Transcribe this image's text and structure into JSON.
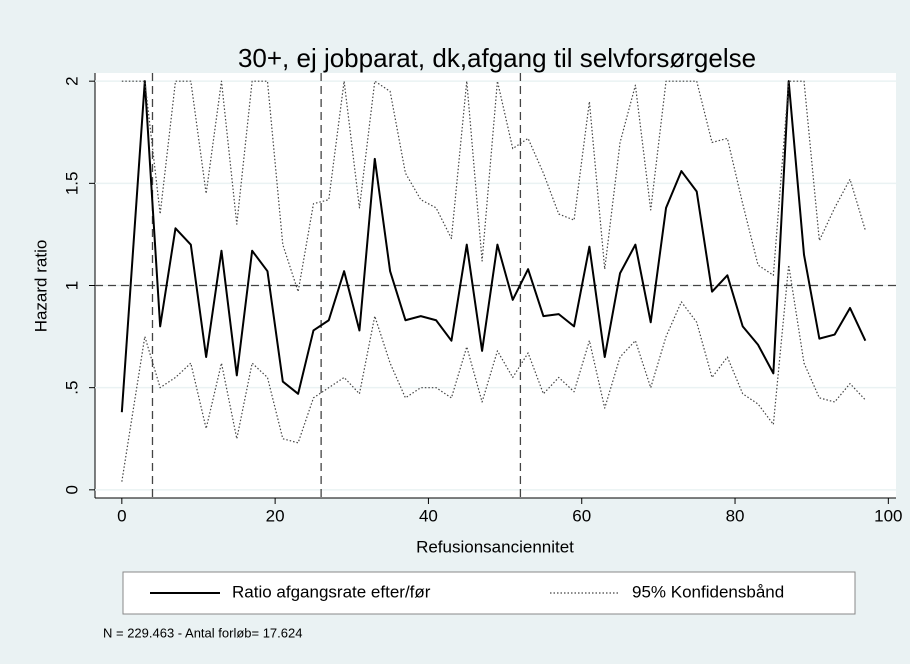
{
  "chart_data": {
    "type": "line",
    "title": "30+, ej jobparat, dk,afgang til selvforsørgelse",
    "xlabel": "Refusionsanciennitet",
    "ylabel": "Hazard ratio",
    "note": "N = 229.463 - Antal forløb= 17.624",
    "x": [
      0,
      3,
      5,
      7,
      9,
      11,
      13,
      15,
      17,
      19,
      21,
      23,
      25,
      27,
      29,
      31,
      33,
      35,
      37,
      39,
      41,
      43,
      45,
      47,
      49,
      51,
      53,
      55,
      57,
      59,
      61,
      63,
      65,
      67,
      69,
      71,
      73,
      75,
      77,
      79,
      81,
      83,
      85,
      87,
      89,
      91,
      93,
      95,
      97
    ],
    "series": [
      {
        "name": "Ratio afgangsrate efter/før",
        "color": "#000000",
        "dash": "solid",
        "values": [
          0.38,
          2,
          0.8,
          1.28,
          1.2,
          0.65,
          1.17,
          0.56,
          1.17,
          1.07,
          0.53,
          0.47,
          0.78,
          0.83,
          1.07,
          0.78,
          1.62,
          1.07,
          0.83,
          0.85,
          0.83,
          0.73,
          1.2,
          0.68,
          1.2,
          0.93,
          1.08,
          0.85,
          0.86,
          0.8,
          1.19,
          0.65,
          1.06,
          1.2,
          0.82,
          1.38,
          1.56,
          1.46,
          0.97,
          1.05,
          0.8,
          0.71,
          0.57,
          2,
          1.15,
          0.74,
          0.76,
          0.89,
          0.73
        ]
      },
      {
        "name": "95% Konfidensbånd",
        "color": "#444444",
        "dash": "dotted",
        "values": [
          2,
          2,
          1.35,
          2,
          2,
          1.45,
          2,
          1.3,
          2,
          2,
          1.2,
          0.97,
          1.4,
          1.42,
          2,
          1.38,
          2,
          1.95,
          1.55,
          1.42,
          1.38,
          1.23,
          2,
          1.12,
          2,
          1.67,
          1.72,
          1.55,
          1.35,
          1.32,
          1.9,
          1.08,
          1.7,
          1.98,
          1.37,
          2,
          2,
          2,
          1.7,
          1.72,
          1.4,
          1.1,
          1.05,
          2,
          2,
          1.22,
          1.38,
          1.52,
          1.27
        ]
      },
      {
        "color": "#444444",
        "dash": "dotted",
        "values": [
          0.04,
          0.75,
          0.5,
          0.55,
          0.62,
          0.3,
          0.62,
          0.25,
          0.62,
          0.55,
          0.25,
          0.23,
          0.45,
          0.5,
          0.55,
          0.47,
          0.85,
          0.62,
          0.45,
          0.5,
          0.5,
          0.45,
          0.7,
          0.43,
          0.68,
          0.55,
          0.67,
          0.47,
          0.55,
          0.48,
          0.73,
          0.4,
          0.65,
          0.73,
          0.5,
          0.75,
          0.92,
          0.82,
          0.55,
          0.65,
          0.47,
          0.42,
          0.32,
          1.1,
          0.62,
          0.45,
          0.43,
          0.52,
          0.44
        ]
      }
    ],
    "xlim": [
      -3.5,
      101
    ],
    "ylim": [
      -0.04,
      2.04
    ],
    "xticks": [
      0,
      20,
      40,
      60,
      80,
      100
    ],
    "yticks": [
      0,
      {
        "value": 0.5,
        "label": ".5"
      },
      1,
      1.5,
      2
    ],
    "vlines": [
      4,
      26,
      52
    ],
    "hline": 1,
    "grid": true,
    "legend": "bottom"
  }
}
